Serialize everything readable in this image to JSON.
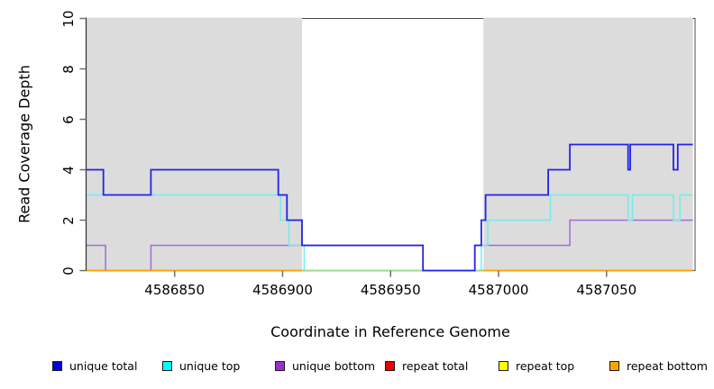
{
  "figure": {
    "background": "#ffffff",
    "plot_background": "#ffffff"
  },
  "chart_data": {
    "type": "line",
    "subtype": "step-coverage",
    "xlabel": "Coordinate in Reference Genome",
    "ylabel": "Read Coverage Depth",
    "x_axis": {
      "range": [
        4586809,
        4587091
      ],
      "ticks": [
        {
          "value": 4586850,
          "label": "4586850"
        },
        {
          "value": 4586900,
          "label": "4586900"
        },
        {
          "value": 4586950,
          "label": "4586950"
        },
        {
          "value": 4587000,
          "label": "4587000"
        },
        {
          "value": 4587050,
          "label": "4587050"
        }
      ]
    },
    "y_axis": {
      "range": [
        0,
        10
      ],
      "ticks": [
        {
          "value": 0,
          "label": "0"
        },
        {
          "value": 2,
          "label": "2"
        },
        {
          "value": 4,
          "label": "4"
        },
        {
          "value": 6,
          "label": "6"
        },
        {
          "value": 8,
          "label": "8"
        },
        {
          "value": 10,
          "label": "10"
        }
      ]
    },
    "masked_regions": {
      "color": "#dcdcdc",
      "regions": [
        [
          4586809,
          4586909
        ],
        [
          4586993,
          4587090
        ]
      ]
    },
    "series": [
      {
        "name": "unique bottom",
        "color": "#a26ad6",
        "width": 1.5,
        "points": [
          [
            4586809,
            1
          ],
          [
            4586818,
            1
          ],
          [
            4586818,
            0
          ],
          [
            4586839,
            0
          ],
          [
            4586839,
            1
          ],
          [
            4586965,
            1
          ],
          [
            4586965,
            0
          ],
          [
            4586989,
            0
          ],
          [
            4586989,
            1
          ],
          [
            4587033,
            1
          ],
          [
            4587033,
            2
          ],
          [
            4587090,
            2
          ]
        ]
      },
      {
        "name": "unique top",
        "color": "#70eded",
        "width": 1.5,
        "points": [
          [
            4586809,
            3
          ],
          [
            4586899,
            3
          ],
          [
            4586899,
            2
          ],
          [
            4586903,
            2
          ],
          [
            4586903,
            1
          ],
          [
            4586910,
            1
          ],
          [
            4586910,
            0
          ],
          [
            4586992,
            0
          ],
          [
            4586992,
            1
          ],
          [
            4586995,
            1
          ],
          [
            4586995,
            2
          ],
          [
            4587024,
            2
          ],
          [
            4587024,
            3
          ],
          [
            4587060,
            3
          ],
          [
            4587060,
            2
          ],
          [
            4587062,
            2
          ],
          [
            4587062,
            3
          ],
          [
            4587081,
            3
          ],
          [
            4587081,
            2
          ],
          [
            4587084,
            2
          ],
          [
            4587084,
            3
          ],
          [
            4587090,
            3
          ]
        ]
      },
      {
        "name": "repeat total",
        "color": "#ee0000",
        "width": 1.5,
        "points": [
          [
            4586809,
            0
          ],
          [
            4587090,
            0
          ]
        ]
      },
      {
        "name": "repeat top",
        "color": "#ffff00",
        "width": 1.5,
        "points": [
          [
            4586809,
            0
          ],
          [
            4587090,
            0
          ]
        ]
      },
      {
        "name": "repeat bottom",
        "color": "#ffa500",
        "width": 1.8,
        "points": [
          [
            4586809,
            0
          ],
          [
            4587090,
            0
          ]
        ]
      },
      {
        "name": "gap baseline",
        "color": "#98e098",
        "width": 1.5,
        "points": [
          [
            4586909,
            0
          ],
          [
            4586993,
            0
          ]
        ]
      },
      {
        "name": "unique total",
        "color": "#2323e8",
        "width": 1.8,
        "points": [
          [
            4586809,
            4
          ],
          [
            4586817,
            4
          ],
          [
            4586817,
            3
          ],
          [
            4586839,
            3
          ],
          [
            4586839,
            4
          ],
          [
            4586898,
            4
          ],
          [
            4586898,
            3
          ],
          [
            4586902,
            3
          ],
          [
            4586902,
            2
          ],
          [
            4586909,
            2
          ],
          [
            4586909,
            1
          ],
          [
            4586965,
            1
          ],
          [
            4586965,
            0
          ],
          [
            4586989,
            0
          ],
          [
            4586989,
            1
          ],
          [
            4586992,
            1
          ],
          [
            4586992,
            2
          ],
          [
            4586994,
            2
          ],
          [
            4586994,
            3
          ],
          [
            4587023,
            3
          ],
          [
            4587023,
            4
          ],
          [
            4587033,
            4
          ],
          [
            4587033,
            5
          ],
          [
            4587060,
            5
          ],
          [
            4587060,
            4
          ],
          [
            4587061,
            4
          ],
          [
            4587061,
            5
          ],
          [
            4587081,
            5
          ],
          [
            4587081,
            4
          ],
          [
            4587083,
            4
          ],
          [
            4587083,
            5
          ],
          [
            4587090,
            5
          ]
        ]
      }
    ]
  },
  "legend": {
    "items": [
      {
        "label": "unique total",
        "color": "#0000e0"
      },
      {
        "label": "unique top",
        "color": "#00ffff"
      },
      {
        "label": "unique bottom",
        "color": "#9932cc"
      },
      {
        "label": "repeat total",
        "color": "#ee0000"
      },
      {
        "label": "repeat top",
        "color": "#ffff00"
      },
      {
        "label": "repeat bottom",
        "color": "#ffa500"
      }
    ]
  },
  "axes_style": {
    "frame_color": "#4a4a4a",
    "axis_color": "#2e2e2e",
    "tick_color": "#6e6e6e",
    "text_color": "#000000"
  }
}
